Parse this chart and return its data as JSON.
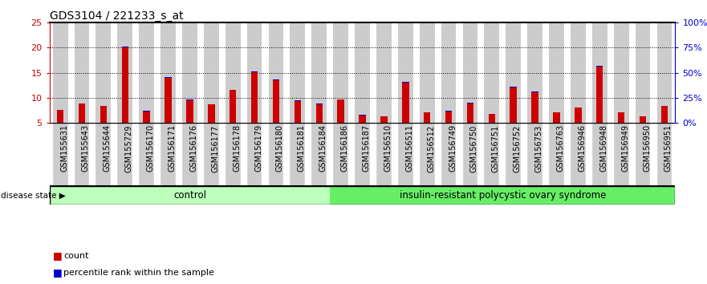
{
  "title": "GDS3104 / 221233_s_at",
  "samples": [
    "GSM155631",
    "GSM155643",
    "GSM155644",
    "GSM155729",
    "GSM156170",
    "GSM156171",
    "GSM156176",
    "GSM156177",
    "GSM156178",
    "GSM156179",
    "GSM156180",
    "GSM156181",
    "GSM156184",
    "GSM156186",
    "GSM156187",
    "GSM156510",
    "GSM156511",
    "GSM156512",
    "GSM156749",
    "GSM156750",
    "GSM156751",
    "GSM156752",
    "GSM156753",
    "GSM156763",
    "GSM156946",
    "GSM156948",
    "GSM156949",
    "GSM156950",
    "GSM156951"
  ],
  "red_values": [
    7.5,
    8.8,
    8.3,
    20.1,
    7.3,
    14.0,
    9.5,
    8.6,
    11.5,
    15.1,
    13.5,
    9.4,
    8.7,
    9.6,
    6.5,
    6.2,
    13.0,
    7.0,
    7.3,
    8.9,
    6.7,
    12.1,
    11.1,
    7.0,
    8.0,
    16.3,
    7.0,
    6.2,
    8.3
  ],
  "blue_values": [
    0.4,
    0.4,
    0.5,
    0.5,
    0.5,
    0.6,
    0.6,
    0.5,
    0.6,
    0.5,
    0.5,
    0.5,
    0.5,
    0.5,
    0.4,
    0.4,
    0.5,
    0.5,
    0.5,
    0.5,
    0.4,
    0.6,
    0.5,
    0.5,
    0.5,
    0.5,
    0.4,
    0.4,
    0.4
  ],
  "n_control": 13,
  "n_disease": 16,
  "control_label": "control",
  "disease_label": "insulin-resistant polycystic ovary syndrome",
  "disease_state_label": "disease state",
  "ylim_left": [
    5,
    25
  ],
  "yticks_left": [
    5,
    10,
    15,
    20,
    25
  ],
  "ylim_right": [
    0,
    100
  ],
  "yticks_right": [
    0,
    25,
    50,
    75,
    100
  ],
  "ytick_labels_right": [
    "0%",
    "25%",
    "50%",
    "75%",
    "100%"
  ],
  "red_color": "#cc0000",
  "blue_color": "#0000cc",
  "control_bg": "#bbffbb",
  "disease_bg": "#66ee66",
  "bar_cell_bg": "#cccccc",
  "grid_color": "#000000",
  "title_fontsize": 10,
  "tick_label_fontsize": 7
}
